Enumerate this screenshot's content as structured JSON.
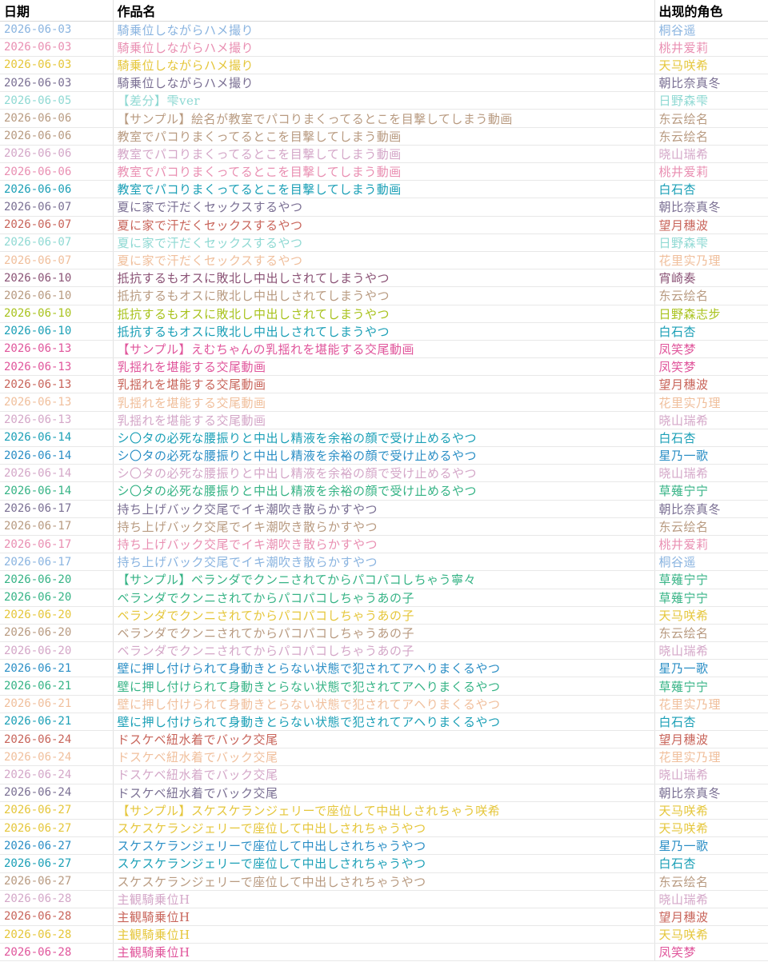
{
  "headers": {
    "date": "日期",
    "work": "作品名",
    "character": "出现的角色"
  },
  "rows": [
    {
      "date": "2026-06-03",
      "work": "騎乗位しながらハメ撮り",
      "character": "桐谷遥",
      "color": "#8ab4e0"
    },
    {
      "date": "2026-06-03",
      "work": "騎乗位しながらハメ撮り",
      "character": "桃井爱莉",
      "color": "#e98fb2"
    },
    {
      "date": "2026-06-03",
      "work": "騎乗位しながらハメ撮り",
      "character": "天马咲希",
      "color": "#e5c63a"
    },
    {
      "date": "2026-06-03",
      "work": "騎乗位しながらハメ撮り",
      "character": "朝比奈真冬",
      "color": "#7a6f93"
    },
    {
      "date": "2026-06-05",
      "work": "【差分】雫ver",
      "character": "日野森雫",
      "color": "#8fd9d3"
    },
    {
      "date": "2026-06-06",
      "work": "【サンプル】絵名が教室でパコりまくってるとこを目撃してしまう動画",
      "character": "东云绘名",
      "color": "#b89a80"
    },
    {
      "date": "2026-06-06",
      "work": "教室でパコりまくってるとこを目撃してしまう動画",
      "character": "东云绘名",
      "color": "#b89a80"
    },
    {
      "date": "2026-06-06",
      "work": "教室でパコりまくってるとこを目撃してしまう動画",
      "character": "晓山瑞希",
      "color": "#d4a7c8"
    },
    {
      "date": "2026-06-06",
      "work": "教室でパコりまくってるとこを目撃してしまう動画",
      "character": "桃井爱莉",
      "color": "#e98fb2"
    },
    {
      "date": "2026-06-06",
      "work": "教室でパコりまくってるとこを目撃してしまう動画",
      "character": "白石杏",
      "color": "#1a9fb6"
    },
    {
      "date": "2026-06-07",
      "work": "夏に家で汗だくセックスするやつ",
      "character": "朝比奈真冬",
      "color": "#7a6f93"
    },
    {
      "date": "2026-06-07",
      "work": "夏に家で汗だくセックスするやつ",
      "character": "望月穗波",
      "color": "#c8645a"
    },
    {
      "date": "2026-06-07",
      "work": "夏に家で汗だくセックスするやつ",
      "character": "日野森雫",
      "color": "#8fd9d3"
    },
    {
      "date": "2026-06-07",
      "work": "夏に家で汗だくセックスするやつ",
      "character": "花里实乃理",
      "color": "#f0bf9c"
    },
    {
      "date": "2026-06-10",
      "work": "抵抗するもオスに敗北し中出しされてしまうやつ",
      "character": "宵崎奏",
      "color": "#8a5275"
    },
    {
      "date": "2026-06-10",
      "work": "抵抗するもオスに敗北し中出しされてしまうやつ",
      "character": "东云绘名",
      "color": "#b89a80"
    },
    {
      "date": "2026-06-10",
      "work": "抵抗するもオスに敗北し中出しされてしまうやつ",
      "character": "日野森志步",
      "color": "#a8c21c"
    },
    {
      "date": "2026-06-10",
      "work": "抵抗するもオスに敗北し中出しされてしまうやつ",
      "character": "白石杏",
      "color": "#1a9fb6"
    },
    {
      "date": "2026-06-13",
      "work": "【サンプル】えむちゃんの乳揺れを堪能する交尾動画",
      "character": "凤笑梦",
      "color": "#e0559b"
    },
    {
      "date": "2026-06-13",
      "work": "乳揺れを堪能する交尾動画",
      "character": "凤笑梦",
      "color": "#e0559b"
    },
    {
      "date": "2026-06-13",
      "work": "乳揺れを堪能する交尾動画",
      "character": "望月穗波",
      "color": "#c8645a"
    },
    {
      "date": "2026-06-13",
      "work": "乳揺れを堪能する交尾動画",
      "character": "花里实乃理",
      "color": "#f0bf9c"
    },
    {
      "date": "2026-06-13",
      "work": "乳揺れを堪能する交尾動画",
      "character": "晓山瑞希",
      "color": "#d4a7c8"
    },
    {
      "date": "2026-06-14",
      "work": "シ〇タの必死な腰振りと中出し精液を余裕の顔で受け止めるやつ",
      "character": "白石杏",
      "color": "#1a9fb6"
    },
    {
      "date": "2026-06-14",
      "work": "シ〇タの必死な腰振りと中出し精液を余裕の顔で受け止めるやつ",
      "character": "星乃一歌",
      "color": "#2a8ec5"
    },
    {
      "date": "2026-06-14",
      "work": "シ〇タの必死な腰振りと中出し精液を余裕の顔で受け止めるやつ",
      "character": "晓山瑞希",
      "color": "#d4a7c8"
    },
    {
      "date": "2026-06-14",
      "work": "シ〇タの必死な腰振りと中出し精液を余裕の顔で受け止めるやつ",
      "character": "草薙宁宁",
      "color": "#35b385"
    },
    {
      "date": "2026-06-17",
      "work": "持ち上げバック交尾でイキ潮吹き散らかすやつ",
      "character": "朝比奈真冬",
      "color": "#7a6f93"
    },
    {
      "date": "2026-06-17",
      "work": "持ち上げバック交尾でイキ潮吹き散らかすやつ",
      "character": "东云绘名",
      "color": "#b89a80"
    },
    {
      "date": "2026-06-17",
      "work": "持ち上げバック交尾でイキ潮吹き散らかすやつ",
      "character": "桃井爱莉",
      "color": "#e98fb2"
    },
    {
      "date": "2026-06-17",
      "work": "持ち上げバック交尾でイキ潮吹き散らかすやつ",
      "character": "桐谷遥",
      "color": "#8ab4e0"
    },
    {
      "date": "2026-06-20",
      "work": "【サンプル】ベランダでクンニされてからパコパコしちゃう寧々",
      "character": "草薙宁宁",
      "color": "#35b385"
    },
    {
      "date": "2026-06-20",
      "work": "ベランダでクンニされてからパコパコしちゃうあの子",
      "character": "草薙宁宁",
      "color": "#35b385"
    },
    {
      "date": "2026-06-20",
      "work": "ベランダでクンニされてからパコパコしちゃうあの子",
      "character": "天马咲希",
      "color": "#e5c63a"
    },
    {
      "date": "2026-06-20",
      "work": "ベランダでクンニされてからパコパコしちゃうあの子",
      "character": "东云绘名",
      "color": "#b89a80"
    },
    {
      "date": "2026-06-20",
      "work": "ベランダでクンニされてからパコパコしちゃうあの子",
      "character": "晓山瑞希",
      "color": "#d4a7c8"
    },
    {
      "date": "2026-06-21",
      "work": "壁に押し付けられて身動きとらない状態で犯されてアヘりまくるやつ",
      "character": "星乃一歌",
      "color": "#2a8ec5"
    },
    {
      "date": "2026-06-21",
      "work": "壁に押し付けられて身動きとらない状態で犯されてアヘりまくるやつ",
      "character": "草薙宁宁",
      "color": "#35b385"
    },
    {
      "date": "2026-06-21",
      "work": "壁に押し付けられて身動きとらない状態で犯されてアヘりまくるやつ",
      "character": "花里实乃理",
      "color": "#f0bf9c"
    },
    {
      "date": "2026-06-21",
      "work": "壁に押し付けられて身動きとらない状態で犯されてアヘりまくるやつ",
      "character": "白石杏",
      "color": "#1a9fb6"
    },
    {
      "date": "2026-06-24",
      "work": "ドスケベ紐水着でバック交尾",
      "character": "望月穗波",
      "color": "#c8645a"
    },
    {
      "date": "2026-06-24",
      "work": "ドスケベ紐水着でバック交尾",
      "character": "花里实乃理",
      "color": "#f0bf9c"
    },
    {
      "date": "2026-06-24",
      "work": "ドスケベ紐水着でバック交尾",
      "character": "晓山瑞希",
      "color": "#d4a7c8"
    },
    {
      "date": "2026-06-24",
      "work": "ドスケベ紐水着でバック交尾",
      "character": "朝比奈真冬",
      "color": "#7a6f93"
    },
    {
      "date": "2026-06-27",
      "work": "【サンプル】スケスケランジェリーで座位して中出しされちゃう咲希",
      "character": "天马咲希",
      "color": "#e5c63a"
    },
    {
      "date": "2026-06-27",
      "work": "スケスケランジェリーで座位して中出しされちゃうやつ",
      "character": "天马咲希",
      "color": "#e5c63a"
    },
    {
      "date": "2026-06-27",
      "work": "スケスケランジェリーで座位して中出しされちゃうやつ",
      "character": "星乃一歌",
      "color": "#2a8ec5"
    },
    {
      "date": "2026-06-27",
      "work": "スケスケランジェリーで座位して中出しされちゃうやつ",
      "character": "白石杏",
      "color": "#1a9fb6"
    },
    {
      "date": "2026-06-27",
      "work": "スケスケランジェリーで座位して中出しされちゃうやつ",
      "character": "东云绘名",
      "color": "#b89a80"
    },
    {
      "date": "2026-06-28",
      "work": "主観騎乗位H",
      "character": "晓山瑞希",
      "color": "#d4a7c8"
    },
    {
      "date": "2026-06-28",
      "work": "主観騎乗位H",
      "character": "望月穗波",
      "color": "#c8645a"
    },
    {
      "date": "2026-06-28",
      "work": "主観騎乗位H",
      "character": "天马咲希",
      "color": "#e5c63a"
    },
    {
      "date": "2026-06-28",
      "work": "主観騎乗位H",
      "character": "凤笑梦",
      "color": "#e0559b"
    }
  ]
}
